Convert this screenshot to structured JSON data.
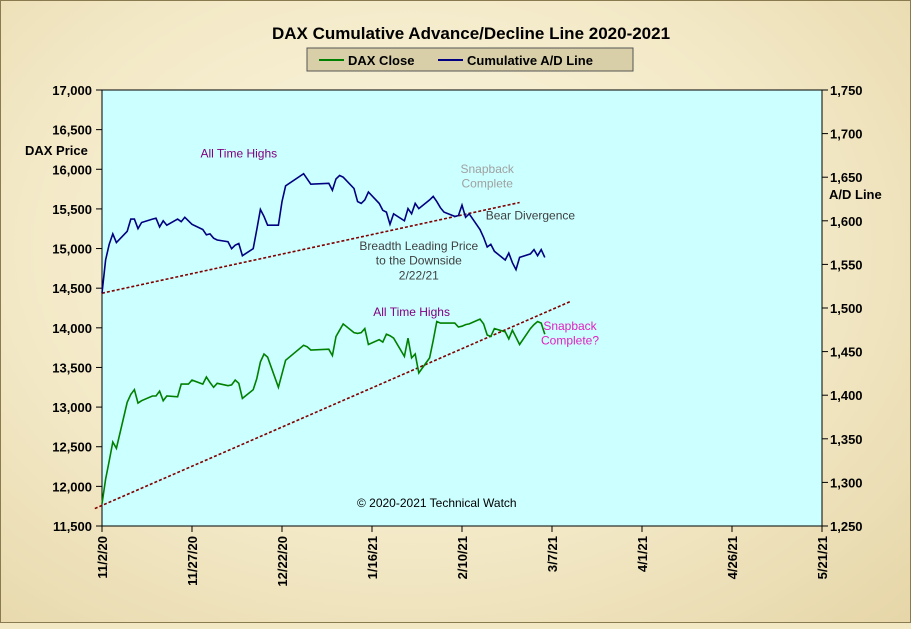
{
  "chart_data": {
    "type": "line",
    "title": "DAX Cumulative  Advance/Decline Line 2020-2021",
    "ylabel_left": "DAX Price",
    "ylabel_right": "A/D Line",
    "ylim_left": [
      11500,
      17000
    ],
    "ylim_right": [
      1250,
      1750
    ],
    "left_ticks": [
      "11,500",
      "12,000",
      "12,500",
      "13,000",
      "13,500",
      "14,000",
      "14,500",
      "15,000",
      "15,500",
      "16,000",
      "16,500",
      "17,000"
    ],
    "right_ticks": [
      "1,250",
      "1,300",
      "1,350",
      "1,400",
      "1,450",
      "1,500",
      "1,550",
      "1,600",
      "1,650",
      "1,700",
      "1,750"
    ],
    "x_ticks": [
      "11/2/20",
      "11/27/20",
      "12/22/20",
      "1/16/21",
      "2/10/21",
      "3/7/21",
      "4/1/21",
      "4/26/21",
      "5/21/21"
    ],
    "x_start": "2020-11-02",
    "x_end": "2021-05-21",
    "series": [
      {
        "name": "DAX Close",
        "axis": "left",
        "color": "#008000",
        "points": [
          [
            "2020-11-02",
            11780
          ],
          [
            "2020-11-03",
            12090
          ],
          [
            "2020-11-04",
            12320
          ],
          [
            "2020-11-05",
            12560
          ],
          [
            "2020-11-06",
            12480
          ],
          [
            "2020-11-09",
            13060
          ],
          [
            "2020-11-10",
            13160
          ],
          [
            "2020-11-11",
            13220
          ],
          [
            "2020-11-12",
            13050
          ],
          [
            "2020-11-13",
            13080
          ],
          [
            "2020-11-16",
            13140
          ],
          [
            "2020-11-17",
            13140
          ],
          [
            "2020-11-18",
            13200
          ],
          [
            "2020-11-19",
            13080
          ],
          [
            "2020-11-20",
            13140
          ],
          [
            "2020-11-23",
            13130
          ],
          [
            "2020-11-24",
            13290
          ],
          [
            "2020-11-25",
            13290
          ],
          [
            "2020-11-26",
            13290
          ],
          [
            "2020-11-27",
            13340
          ],
          [
            "2020-11-30",
            13290
          ],
          [
            "2020-12-01",
            13380
          ],
          [
            "2020-12-02",
            13310
          ],
          [
            "2020-12-03",
            13250
          ],
          [
            "2020-12-04",
            13300
          ],
          [
            "2020-12-07",
            13270
          ],
          [
            "2020-12-08",
            13280
          ],
          [
            "2020-12-09",
            13340
          ],
          [
            "2020-12-10",
            13300
          ],
          [
            "2020-12-11",
            13110
          ],
          [
            "2020-12-14",
            13220
          ],
          [
            "2020-12-15",
            13360
          ],
          [
            "2020-12-16",
            13570
          ],
          [
            "2020-12-17",
            13670
          ],
          [
            "2020-12-18",
            13630
          ],
          [
            "2020-12-21",
            13250
          ],
          [
            "2020-12-22",
            13420
          ],
          [
            "2020-12-23",
            13590
          ],
          [
            "2020-12-28",
            13780
          ],
          [
            "2020-12-29",
            13760
          ],
          [
            "2020-12-30",
            13720
          ],
          [
            "2021-01-04",
            13730
          ],
          [
            "2021-01-05",
            13650
          ],
          [
            "2021-01-06",
            13890
          ],
          [
            "2021-01-07",
            13970
          ],
          [
            "2021-01-08",
            14050
          ],
          [
            "2021-01-11",
            13940
          ],
          [
            "2021-01-12",
            13930
          ],
          [
            "2021-01-13",
            13940
          ],
          [
            "2021-01-14",
            13990
          ],
          [
            "2021-01-15",
            13790
          ],
          [
            "2021-01-18",
            13850
          ],
          [
            "2021-01-19",
            13820
          ],
          [
            "2021-01-20",
            13920
          ],
          [
            "2021-01-21",
            13900
          ],
          [
            "2021-01-22",
            13870
          ],
          [
            "2021-01-25",
            13640
          ],
          [
            "2021-01-26",
            13870
          ],
          [
            "2021-01-27",
            13620
          ],
          [
            "2021-01-28",
            13670
          ],
          [
            "2021-01-29",
            13430
          ],
          [
            "2021-02-01",
            13620
          ],
          [
            "2021-02-02",
            13840
          ],
          [
            "2021-02-03",
            14080
          ],
          [
            "2021-02-04",
            14060
          ],
          [
            "2021-02-05",
            14060
          ],
          [
            "2021-02-08",
            14060
          ],
          [
            "2021-02-09",
            14010
          ],
          [
            "2021-02-10",
            14020
          ],
          [
            "2021-02-11",
            14040
          ],
          [
            "2021-02-12",
            14050
          ],
          [
            "2021-02-15",
            14110
          ],
          [
            "2021-02-16",
            14050
          ],
          [
            "2021-02-17",
            13910
          ],
          [
            "2021-02-18",
            13890
          ],
          [
            "2021-02-19",
            13990
          ],
          [
            "2021-02-22",
            13950
          ],
          [
            "2021-02-23",
            13860
          ],
          [
            "2021-02-24",
            13970
          ],
          [
            "2021-02-25",
            13880
          ],
          [
            "2021-02-26",
            13790
          ],
          [
            "2021-03-01",
            13990
          ],
          [
            "2021-03-02",
            14040
          ],
          [
            "2021-03-03",
            14080
          ],
          [
            "2021-03-04",
            14060
          ],
          [
            "2021-03-05",
            13920
          ]
        ]
      },
      {
        "name": "Cumulative A/D Line",
        "axis": "right",
        "color": "#000080",
        "points": [
          [
            "2020-11-02",
            1517
          ],
          [
            "2020-11-03",
            1555
          ],
          [
            "2020-11-04",
            1573
          ],
          [
            "2020-11-05",
            1585
          ],
          [
            "2020-11-06",
            1575
          ],
          [
            "2020-11-09",
            1588
          ],
          [
            "2020-11-10",
            1602
          ],
          [
            "2020-11-11",
            1602
          ],
          [
            "2020-11-12",
            1591
          ],
          [
            "2020-11-13",
            1598
          ],
          [
            "2020-11-16",
            1602
          ],
          [
            "2020-11-17",
            1603
          ],
          [
            "2020-11-18",
            1593
          ],
          [
            "2020-11-19",
            1600
          ],
          [
            "2020-11-20",
            1595
          ],
          [
            "2020-11-23",
            1602
          ],
          [
            "2020-11-24",
            1599
          ],
          [
            "2020-11-25",
            1604
          ],
          [
            "2020-11-26",
            1600
          ],
          [
            "2020-11-27",
            1596
          ],
          [
            "2020-11-30",
            1590
          ],
          [
            "2020-12-01",
            1584
          ],
          [
            "2020-12-02",
            1585
          ],
          [
            "2020-12-03",
            1580
          ],
          [
            "2020-12-04",
            1578
          ],
          [
            "2020-12-07",
            1576
          ],
          [
            "2020-12-08",
            1568
          ],
          [
            "2020-12-09",
            1572
          ],
          [
            "2020-12-10",
            1574
          ],
          [
            "2020-12-11",
            1560
          ],
          [
            "2020-12-14",
            1568
          ],
          [
            "2020-12-15",
            1590
          ],
          [
            "2020-12-16",
            1613
          ],
          [
            "2020-12-17",
            1605
          ],
          [
            "2020-12-18",
            1595
          ],
          [
            "2020-12-21",
            1595
          ],
          [
            "2020-12-22",
            1622
          ],
          [
            "2020-12-23",
            1640
          ],
          [
            "2020-12-28",
            1654
          ],
          [
            "2020-12-29",
            1648
          ],
          [
            "2020-12-30",
            1642
          ],
          [
            "2021-01-04",
            1643
          ],
          [
            "2021-01-05",
            1635
          ],
          [
            "2021-01-06",
            1648
          ],
          [
            "2021-01-07",
            1652
          ],
          [
            "2021-01-08",
            1650
          ],
          [
            "2021-01-11",
            1637
          ],
          [
            "2021-01-12",
            1622
          ],
          [
            "2021-01-13",
            1620
          ],
          [
            "2021-01-14",
            1624
          ],
          [
            "2021-01-15",
            1633
          ],
          [
            "2021-01-18",
            1620
          ],
          [
            "2021-01-19",
            1612
          ],
          [
            "2021-01-20",
            1610
          ],
          [
            "2021-01-21",
            1596
          ],
          [
            "2021-01-22",
            1608
          ],
          [
            "2021-01-25",
            1600
          ],
          [
            "2021-01-26",
            1614
          ],
          [
            "2021-01-27",
            1608
          ],
          [
            "2021-01-28",
            1620
          ],
          [
            "2021-01-29",
            1614
          ],
          [
            "2021-02-01",
            1624
          ],
          [
            "2021-02-02",
            1628
          ],
          [
            "2021-02-03",
            1622
          ],
          [
            "2021-02-04",
            1615
          ],
          [
            "2021-02-05",
            1610
          ],
          [
            "2021-02-08",
            1605
          ],
          [
            "2021-02-09",
            1606
          ],
          [
            "2021-02-10",
            1618
          ],
          [
            "2021-02-11",
            1604
          ],
          [
            "2021-02-12",
            1608
          ],
          [
            "2021-02-15",
            1590
          ],
          [
            "2021-02-16",
            1581
          ],
          [
            "2021-02-17",
            1570
          ],
          [
            "2021-02-18",
            1573
          ],
          [
            "2021-02-19",
            1565
          ],
          [
            "2021-02-22",
            1555
          ],
          [
            "2021-02-23",
            1563
          ],
          [
            "2021-02-24",
            1552
          ],
          [
            "2021-02-25",
            1544
          ],
          [
            "2021-02-26",
            1558
          ],
          [
            "2021-03-01",
            1562
          ],
          [
            "2021-03-02",
            1567
          ],
          [
            "2021-03-03",
            1560
          ],
          [
            "2021-03-04",
            1567
          ],
          [
            "2021-03-05",
            1558
          ]
        ]
      }
    ],
    "trendlines": [
      {
        "axis": "right",
        "from": [
          "2020-11-02",
          1517
        ],
        "to": [
          "2021-02-26",
          1621
        ]
      },
      {
        "axis": "left",
        "from": [
          "2020-10-31",
          11720
        ],
        "to": [
          "2021-03-12",
          14330
        ]
      }
    ],
    "annotations": [
      {
        "text": "All Time Highs",
        "color": "#800080",
        "at": [
          "2020-12-10",
          16150
        ]
      },
      {
        "text": "Snapback",
        "color": "#a0a0a0",
        "at": [
          "2021-02-17",
          15950
        ]
      },
      {
        "text": "Complete",
        "color": "#a0a0a0",
        "at": [
          "2021-02-17",
          15770
        ]
      },
      {
        "text": "Bear Divergence",
        "color": "#404040",
        "at": [
          "2021-03-01",
          15365
        ]
      },
      {
        "text": "Breadth Leading Price",
        "color": "#404040",
        "at": [
          "2021-01-29",
          14980
        ]
      },
      {
        "text": "to the Downside",
        "color": "#404040",
        "at": [
          "2021-01-29",
          14800
        ]
      },
      {
        "text": "2/22/21",
        "color": "#404040",
        "at": [
          "2021-01-29",
          14610
        ]
      },
      {
        "text": "All Time Highs",
        "color": "#800080",
        "at": [
          "2021-01-27",
          14150
        ]
      },
      {
        "text": "Snapback",
        "color": "#e020c0",
        "at": [
          "2021-03-12",
          13970
        ]
      },
      {
        "text": "Complete?",
        "color": "#e020c0",
        "at": [
          "2021-03-12",
          13790
        ]
      },
      {
        "text": "© 2020-2021  Technical Watch",
        "color": "#000000",
        "at": [
          "2021-02-03",
          11740
        ]
      }
    ]
  }
}
